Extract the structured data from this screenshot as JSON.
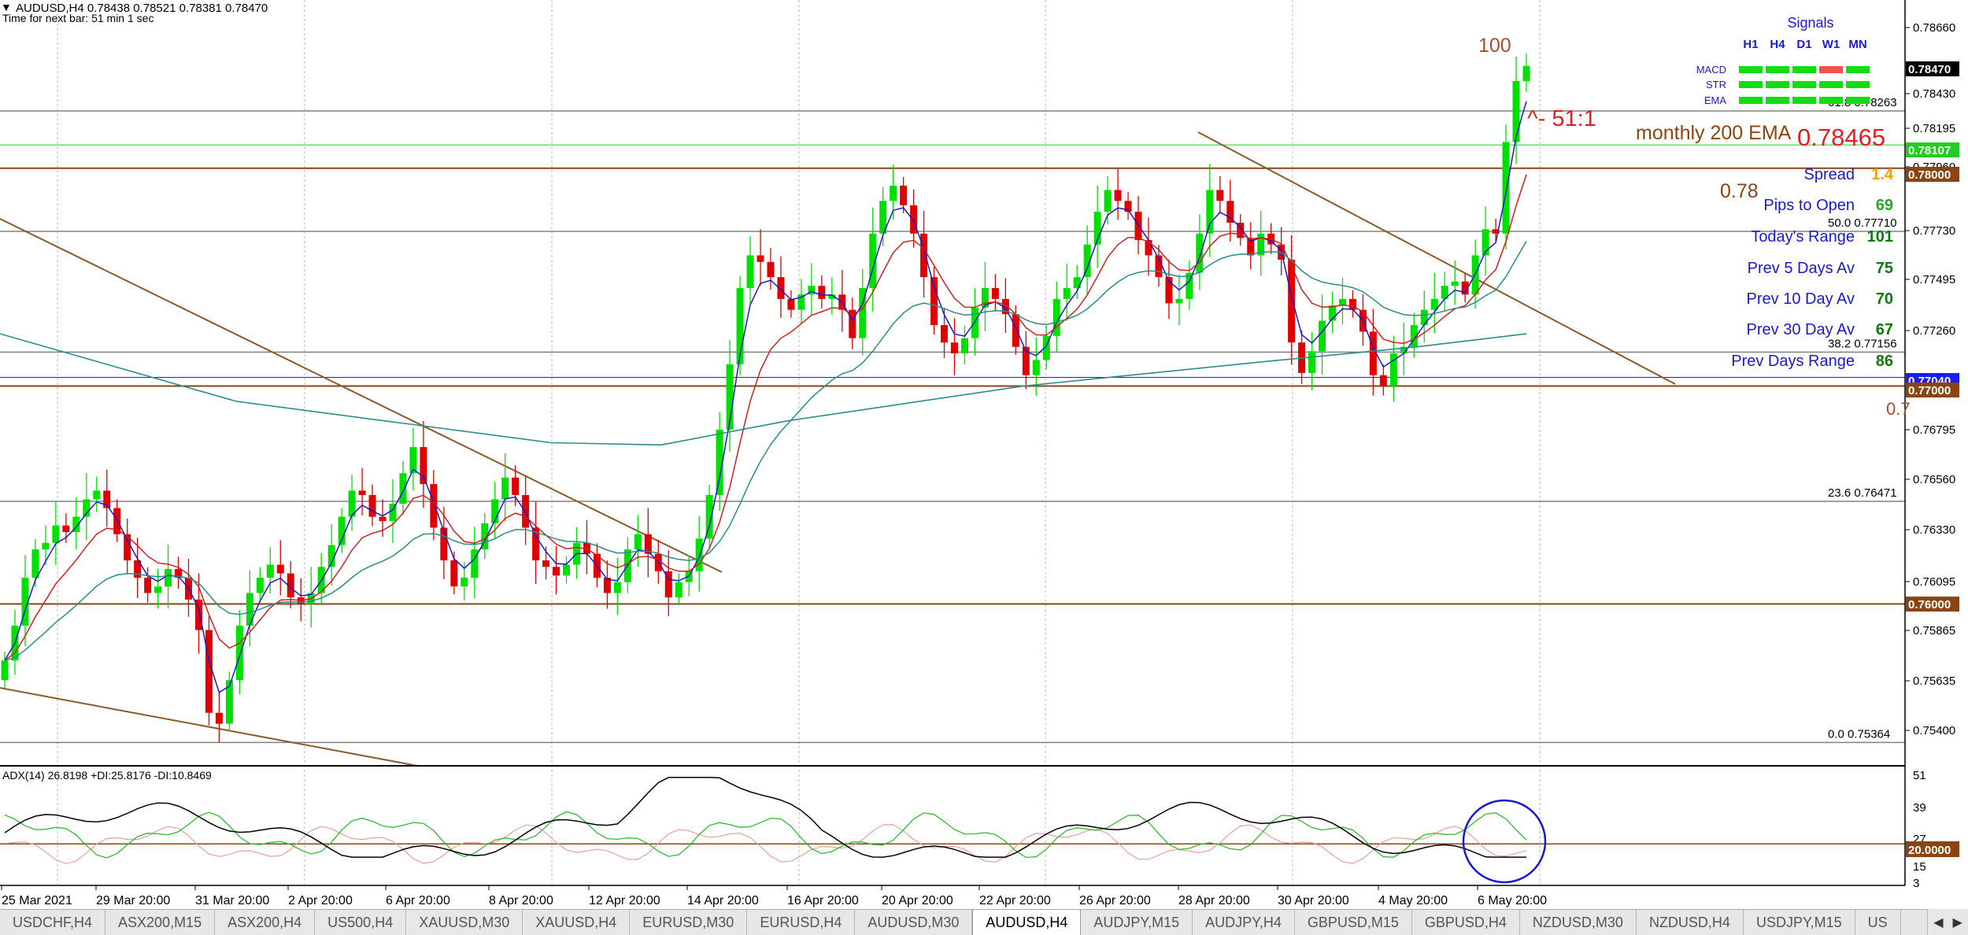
{
  "window": {
    "symbol_line": "AUDUSD,H4  0.78438 0.78521 0.78381 0.78470",
    "timer": "Time for next bar: 51 min 1 sec",
    "adx_label": "ADX(14) 26.8198 +DI:25.8176 -DI:10.8469"
  },
  "annotations": {
    "top_number": "100",
    "ratio": "^- 51:1",
    "ema_label": "monthly 200 EMA",
    "ema_value": "0.78465",
    "level_078": "0.78",
    "level_07_cut": "0.7"
  },
  "fib": [
    {
      "pct": "61.8",
      "value": "0.78263"
    },
    {
      "pct": "50.0",
      "value": "0.77710"
    },
    {
      "pct": "38.2",
      "value": "0.77156"
    },
    {
      "pct": "23.6",
      "value": "0.76471"
    },
    {
      "pct": "0.0",
      "value": "0.75364"
    }
  ],
  "signals": {
    "title": "Signals",
    "timeframes": [
      "H1",
      "H4",
      "D1",
      "W1",
      "MN"
    ],
    "rows": [
      {
        "label": "MACD",
        "states": [
          "up",
          "up",
          "up",
          "down",
          "up"
        ]
      },
      {
        "label": "STR",
        "states": [
          "up",
          "up",
          "up",
          "up",
          "up"
        ]
      },
      {
        "label": "EMA",
        "states": [
          "up",
          "up",
          "up",
          "up",
          "up"
        ]
      }
    ]
  },
  "stats": [
    {
      "label": "Spread",
      "value": "1.4",
      "color": "#f4a100"
    },
    {
      "label": "Pips to Open",
      "value": "69",
      "color": "#22aa22"
    },
    {
      "label": "Today's Range",
      "value": "101",
      "color": "#117711"
    },
    {
      "label": "Prev 5 Days Av",
      "value": "75",
      "color": "#117711"
    },
    {
      "label": "Prev 10 Day Av",
      "value": "70",
      "color": "#117711"
    },
    {
      "label": "Prev 30 Day Av",
      "value": "67",
      "color": "#117711"
    },
    {
      "label": "Prev Days Range",
      "value": "86",
      "color": "#117711"
    }
  ],
  "price_axis": {
    "ticks": [
      "0.78660",
      "0.78430",
      "0.78195",
      "0.77960",
      "0.77730",
      "0.77495",
      "0.77260",
      "0.77030",
      "0.76795",
      "0.76560",
      "0.76330",
      "0.76095",
      "0.75865",
      "0.75635",
      "0.75400"
    ],
    "tags": [
      {
        "text": "0.78470",
        "bg": "#000000",
        "fg": "#ffffff"
      },
      {
        "text": "0.78107",
        "bg": "#22cc22",
        "fg": "#ffffff"
      },
      {
        "text": "0.78000",
        "bg": "#8b4513",
        "fg": "#ffffff"
      },
      {
        "text": "0.77040",
        "bg": "#1a1aff",
        "fg": "#ffffff"
      },
      {
        "text": "0.77000",
        "bg": "#8b4513",
        "fg": "#ffffff"
      },
      {
        "text": "0.76000",
        "bg": "#8b4513",
        "fg": "#ffffff"
      }
    ]
  },
  "adx_axis": {
    "ticks": [
      "51",
      "39",
      "27",
      "20.0000",
      "15",
      "3"
    ]
  },
  "time_axis": [
    "25 Mar 2021",
    "29 Mar 20:00",
    "31 Mar 20:00",
    "2 Apr 20:00",
    "6 Apr 20:00",
    "8 Apr 20:00",
    "12 Apr 20:00",
    "14 Apr 20:00",
    "16 Apr 20:00",
    "20 Apr 20:00",
    "22 Apr 20:00",
    "26 Apr 20:00",
    "28 Apr 20:00",
    "30 Apr 20:00",
    "4 May 20:00",
    "6 May 20:00"
  ],
  "tabs": [
    "USDCHF,H4",
    "ASX200,M15",
    "ASX200,H4",
    "US500,H4",
    "XAUUSD,M30",
    "XAUUSD,H4",
    "EURUSD,M30",
    "EURUSD,H4",
    "AUDUSD,M30",
    "AUDUSD,H4",
    "AUDJPY,M15",
    "AUDJPY,H4",
    "GBPUSD,M15",
    "GBPUSD,H4",
    "NZDUSD,M30",
    "NZDUSD,H4",
    "USDJPY,M15",
    "US"
  ],
  "active_tab": "AUDUSD,H4",
  "colors": {
    "bull": "#00e000",
    "bear": "#e00000",
    "trendline": "#8b5a2b",
    "ema200": "#2a8c8c"
  },
  "chart_data": {
    "type": "candlestick",
    "symbol": "AUDUSD",
    "timeframe": "H4",
    "price_ylim": [
      0.753,
      0.787
    ],
    "last_close": 0.7847,
    "closes": [
      0.7574,
      0.759,
      0.7612,
      0.7625,
      0.7628,
      0.7636,
      0.7633,
      0.764,
      0.7648,
      0.7652,
      0.7644,
      0.7632,
      0.762,
      0.7612,
      0.7605,
      0.7608,
      0.7616,
      0.7612,
      0.7602,
      0.7588,
      0.755,
      0.7545,
      0.7565,
      0.759,
      0.7605,
      0.7612,
      0.7618,
      0.7614,
      0.7603,
      0.76,
      0.7605,
      0.7617,
      0.7627,
      0.764,
      0.7652,
      0.765,
      0.764,
      0.7638,
      0.7646,
      0.766,
      0.7672,
      0.7655,
      0.7635,
      0.762,
      0.7608,
      0.7612,
      0.7625,
      0.7637,
      0.7648,
      0.7658,
      0.765,
      0.7635,
      0.762,
      0.7617,
      0.7613,
      0.7618,
      0.7628,
      0.7623,
      0.7612,
      0.7605,
      0.761,
      0.7625,
      0.7632,
      0.7623,
      0.7615,
      0.7603,
      0.761,
      0.7615,
      0.763,
      0.765,
      0.768,
      0.771,
      0.7745,
      0.776,
      0.7757,
      0.775,
      0.774,
      0.7735,
      0.7742,
      0.7746,
      0.774,
      0.7742,
      0.7735,
      0.7722,
      0.7745,
      0.777,
      0.7785,
      0.7792,
      0.7783,
      0.777,
      0.775,
      0.7728,
      0.772,
      0.7715,
      0.7722,
      0.7736,
      0.7745,
      0.774,
      0.7733,
      0.7718,
      0.7705,
      0.7712,
      0.7723,
      0.774,
      0.7745,
      0.775,
      0.7765,
      0.778,
      0.779,
      0.7785,
      0.778,
      0.7767,
      0.776,
      0.775,
      0.7738,
      0.774,
      0.7752,
      0.777,
      0.779,
      0.7785,
      0.7775,
      0.7768,
      0.776,
      0.777,
      0.7765,
      0.7758,
      0.772,
      0.7706,
      0.7716,
      0.773,
      0.7737,
      0.774,
      0.7735,
      0.7725,
      0.7705,
      0.77,
      0.7715,
      0.7718,
      0.7728,
      0.7735,
      0.774,
      0.7746,
      0.7748,
      0.7742,
      0.776,
      0.7772,
      0.777,
      0.7812,
      0.784,
      0.7847
    ]
  }
}
